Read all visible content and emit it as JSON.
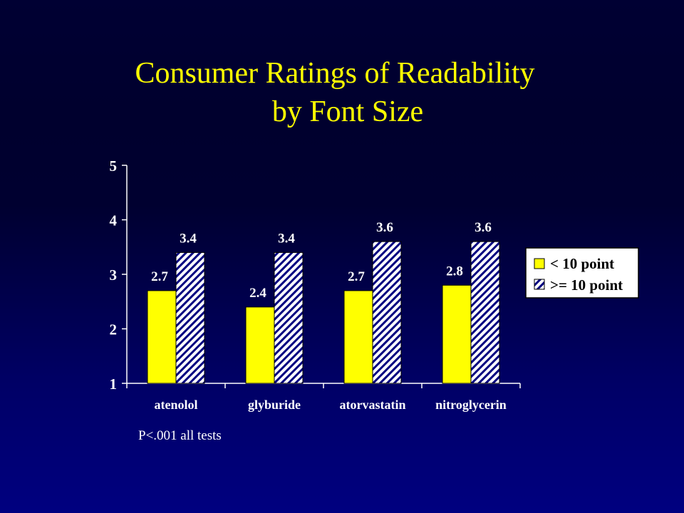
{
  "title_lines": [
    "Consumer Ratings of Readability",
    "by Font Size"
  ],
  "footnote": "P<.001 all tests",
  "colors": {
    "background": "#000066",
    "title": "#ffff00",
    "series_solid": "#ffff00",
    "series_hatch_fg": "#000080",
    "series_hatch_bg": "#ffffff",
    "text": "#ffffff"
  },
  "chart_data": {
    "type": "bar",
    "title": "Consumer Ratings of Readability by Font Size",
    "xlabel": "",
    "ylabel": "",
    "categories": [
      "atenolol",
      "glyburide",
      "atorvastatin",
      "nitroglycerin"
    ],
    "series": [
      {
        "name": "< 10 point",
        "values": [
          2.7,
          2.4,
          2.7,
          2.8
        ],
        "labels": [
          "2.7",
          "2.4",
          "2.7",
          "2.8"
        ],
        "fill": "solid-yellow"
      },
      {
        "name": ">= 10 point",
        "values": [
          3.4,
          3.4,
          3.6,
          3.6
        ],
        "labels": [
          "3.4",
          "3.4",
          "3.6",
          "3.6"
        ],
        "fill": "hatched-blue-white"
      }
    ],
    "ylim": [
      1,
      5
    ],
    "yticks": [
      1,
      2,
      3,
      4,
      5
    ],
    "grid": false,
    "legend_position": "right"
  }
}
